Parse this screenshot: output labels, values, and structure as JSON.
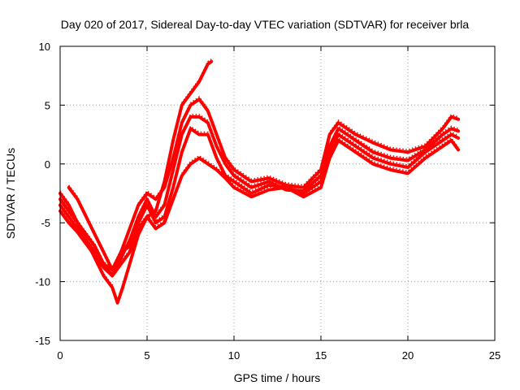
{
  "chart_data": {
    "type": "line",
    "title": "Day 020 of 2017, Sidereal Day-to-day VTEC variation (SDTVAR) for receiver brla",
    "xlabel": "GPS time / hours",
    "ylabel": "SDTVAR / TECUs",
    "xlim": [
      0,
      25
    ],
    "ylim": [
      -15,
      10
    ],
    "xticks": [
      "0",
      "5",
      "10",
      "15",
      "20",
      "25"
    ],
    "yticks": [
      "-15",
      "-10",
      "-5",
      "0",
      "5",
      "10"
    ],
    "grid": true,
    "legend": "none",
    "marker": "plus",
    "color": "#ff0000",
    "series": [
      {
        "x": [
          0,
          0.5,
          1.0,
          1.5,
          2.0,
          2.5,
          3.0,
          3.3,
          3.6,
          4.0,
          4.5,
          5.0,
          5.5,
          6.0,
          6.5,
          7.0,
          7.5,
          8.0,
          8.5,
          8.7
        ],
        "y": [
          -2.5,
          -3.5,
          -5.0,
          -6.5,
          -8.0,
          -9.5,
          -10.5,
          -11.8,
          -10.5,
          -8.5,
          -6.0,
          -4.5,
          -4.0,
          -1.5,
          2.0,
          5.0,
          6.0,
          7.0,
          8.5,
          8.7
        ]
      },
      {
        "x": [
          0.5,
          1.0,
          1.5,
          2.0,
          2.5,
          3.0,
          3.5,
          4.0,
          4.5,
          5.0,
          5.5,
          6.0,
          6.5,
          7.0,
          7.5,
          8.0,
          8.5,
          9.0,
          9.5,
          10.0,
          11.0,
          12.0,
          13.0,
          14.0,
          15.0,
          15.5,
          16.0,
          17.0,
          18.0,
          19.0,
          20.0,
          21.0,
          22.0,
          22.5,
          22.9
        ],
        "y": [
          -2.0,
          -3.0,
          -4.5,
          -6.0,
          -7.5,
          -9.0,
          -7.5,
          -5.5,
          -3.5,
          -2.5,
          -3.0,
          -2.0,
          0.5,
          3.5,
          5.0,
          5.5,
          4.5,
          2.5,
          0.5,
          -0.5,
          -1.5,
          -1.2,
          -1.8,
          -2.0,
          -0.5,
          2.5,
          3.5,
          2.5,
          1.8,
          1.2,
          1.0,
          1.5,
          3.0,
          4.0,
          3.8
        ]
      },
      {
        "x": [
          0,
          0.5,
          1.0,
          1.5,
          2.0,
          2.5,
          3.0,
          3.5,
          4.0,
          4.5,
          5.0,
          5.5,
          6.0,
          6.5,
          7.0,
          7.5,
          8.0,
          8.5,
          9.0,
          9.5,
          10.0,
          11.0,
          12.0,
          13.0,
          14.0,
          15.0,
          15.5,
          16.0,
          17.0,
          18.0,
          19.0,
          20.0,
          21.0,
          22.0,
          22.5,
          22.9
        ],
        "y": [
          -3.0,
          -4.0,
          -5.0,
          -6.0,
          -7.0,
          -8.5,
          -9.5,
          -8.0,
          -6.5,
          -4.5,
          -3.0,
          -4.5,
          -3.5,
          -0.5,
          2.5,
          4.0,
          4.0,
          3.5,
          1.5,
          0.0,
          -1.0,
          -2.0,
          -1.5,
          -2.2,
          -2.3,
          -1.0,
          1.5,
          3.0,
          2.0,
          1.0,
          0.5,
          0.3,
          1.2,
          2.5,
          3.0,
          2.8
        ]
      },
      {
        "x": [
          0,
          0.5,
          1.0,
          1.5,
          2.0,
          2.5,
          3.0,
          3.5,
          4.0,
          4.5,
          5.0,
          5.5,
          6.0,
          6.5,
          7.0,
          7.5,
          8.0,
          8.5,
          9.0,
          9.5,
          10.0,
          11.0,
          12.0,
          13.0,
          14.0,
          15.0,
          15.5,
          16.0,
          17.0,
          18.0,
          19.0,
          20.0,
          21.0,
          22.0,
          22.5,
          22.9
        ],
        "y": [
          -3.5,
          -4.5,
          -5.5,
          -6.5,
          -7.5,
          -8.5,
          -9.0,
          -7.5,
          -7.0,
          -5.0,
          -3.5,
          -5.0,
          -4.5,
          -2.0,
          1.0,
          3.0,
          2.5,
          2.5,
          0.5,
          -1.0,
          -1.5,
          -2.5,
          -1.8,
          -2.0,
          -2.5,
          -1.5,
          1.0,
          2.5,
          1.5,
          0.5,
          0.0,
          -0.3,
          1.0,
          2.0,
          2.5,
          2.2
        ]
      },
      {
        "x": [
          0,
          0.5,
          1.0,
          1.5,
          2.0,
          2.5,
          3.0,
          3.5,
          4.0,
          4.5,
          5.0,
          5.5,
          6.0,
          6.5,
          7.0,
          7.5,
          8.0,
          8.5,
          9.0,
          9.5,
          10.0,
          11.0,
          12.0,
          13.0,
          14.0,
          15.0,
          15.5,
          16.0,
          17.0,
          18.0,
          19.0,
          20.0,
          21.0,
          22.0,
          22.5,
          22.9
        ],
        "y": [
          -4.0,
          -5.0,
          -5.8,
          -6.8,
          -7.8,
          -8.8,
          -9.5,
          -8.5,
          -7.5,
          -5.5,
          -4.5,
          -5.5,
          -5.0,
          -3.0,
          -1.0,
          0.0,
          0.5,
          0.0,
          -0.5,
          -1.2,
          -2.0,
          -2.8,
          -2.2,
          -2.0,
          -2.8,
          -2.0,
          0.5,
          2.0,
          1.0,
          0.0,
          -0.5,
          -0.8,
          0.5,
          1.5,
          2.0,
          1.2
        ]
      }
    ]
  }
}
